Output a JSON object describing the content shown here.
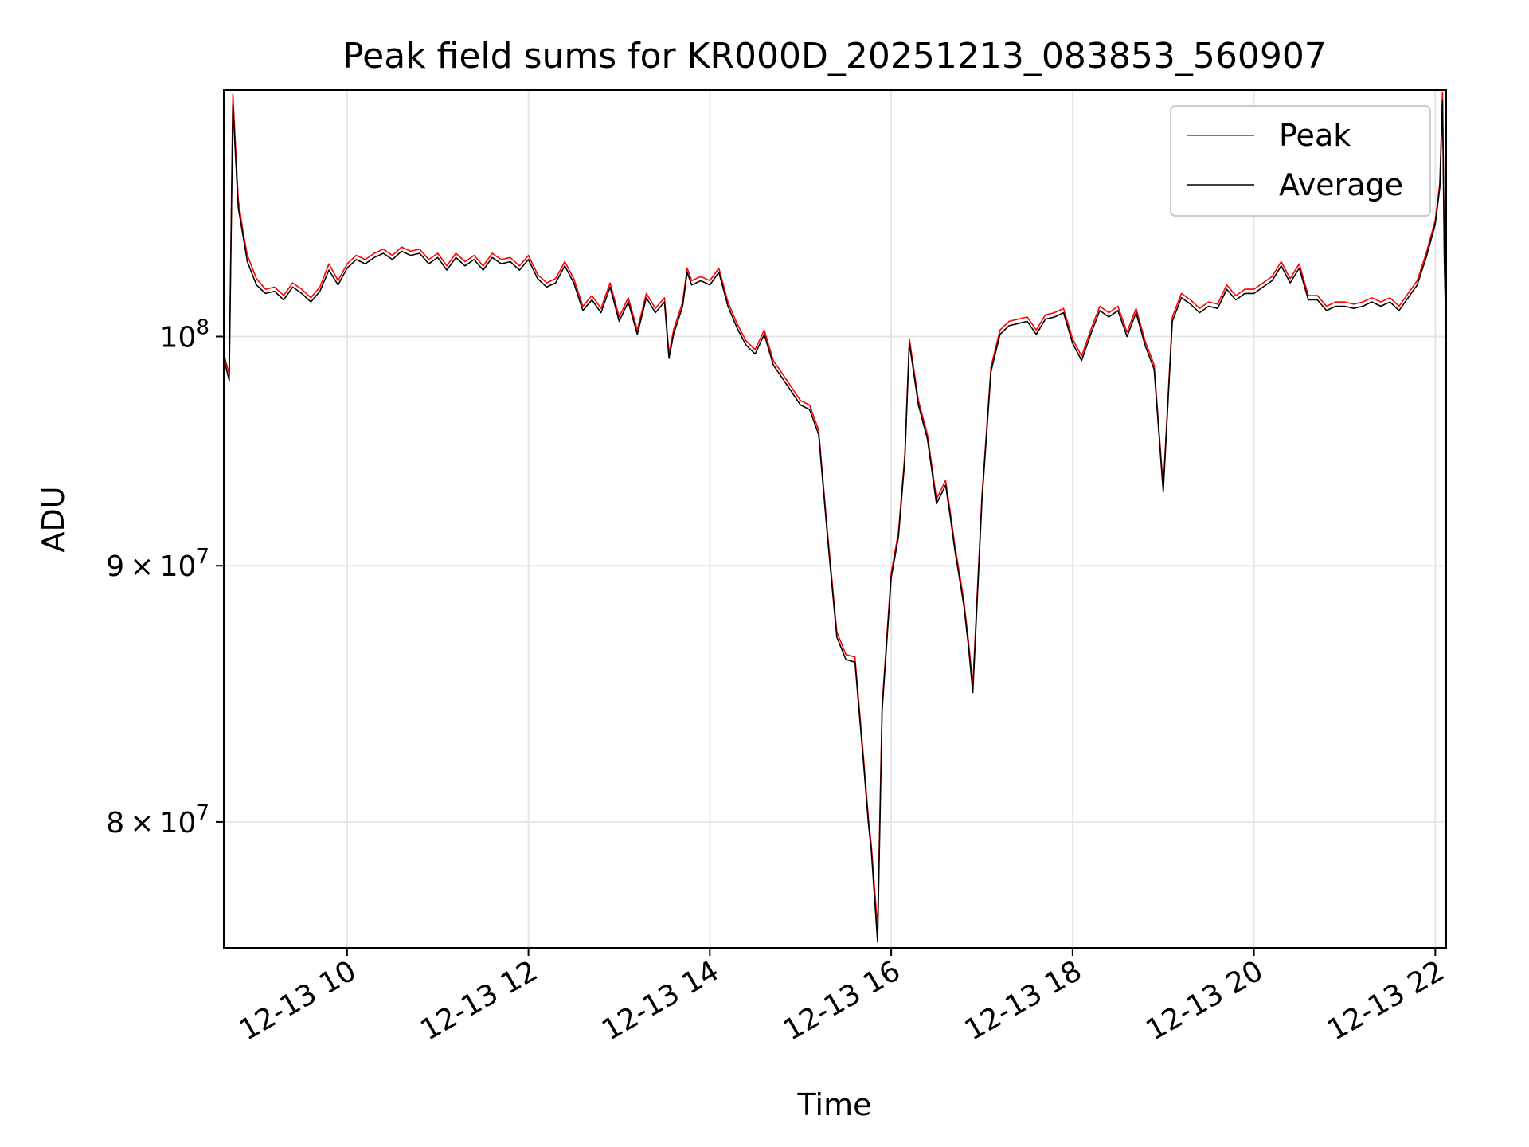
{
  "chart_data": {
    "type": "line",
    "title": "Peak field sums for KR000D_20251213_083853_560907",
    "xlabel": "Time",
    "ylabel": "ADU",
    "yscale": "log",
    "xlim": [
      8.64,
      22.12
    ],
    "ylim": [
      75500000,
      112000000
    ],
    "grid": true,
    "legend_position": "top-right",
    "x_ticks": [
      {
        "value": 10,
        "label": "12-13 10"
      },
      {
        "value": 12,
        "label": "12-13 12"
      },
      {
        "value": 14,
        "label": "12-13 14"
      },
      {
        "value": 16,
        "label": "12-13 16"
      },
      {
        "value": 18,
        "label": "12-13 18"
      },
      {
        "value": 20,
        "label": "12-13 20"
      },
      {
        "value": 22,
        "label": "12-13 22"
      }
    ],
    "y_ticks": [
      {
        "value": 80000000,
        "mantissa": "8",
        "base": "10",
        "exp": "7"
      },
      {
        "value": 90000000,
        "mantissa": "9",
        "base": "10",
        "exp": "7"
      },
      {
        "value": 100000000,
        "mantissa": "",
        "base": "10",
        "exp": "8"
      }
    ],
    "x": [
      8.64,
      8.7,
      8.74,
      8.8,
      8.85,
      8.9,
      9.0,
      9.1,
      9.2,
      9.3,
      9.4,
      9.5,
      9.6,
      9.7,
      9.8,
      9.9,
      10.0,
      10.1,
      10.2,
      10.3,
      10.4,
      10.5,
      10.6,
      10.7,
      10.8,
      10.9,
      11.0,
      11.1,
      11.2,
      11.3,
      11.4,
      11.5,
      11.6,
      11.7,
      11.8,
      11.9,
      12.0,
      12.1,
      12.2,
      12.3,
      12.4,
      12.5,
      12.6,
      12.7,
      12.8,
      12.9,
      13.0,
      13.1,
      13.2,
      13.3,
      13.4,
      13.5,
      13.55,
      13.6,
      13.7,
      13.75,
      13.8,
      13.9,
      14.0,
      14.1,
      14.2,
      14.3,
      14.4,
      14.5,
      14.6,
      14.7,
      14.8,
      14.9,
      15.0,
      15.1,
      15.2,
      15.3,
      15.4,
      15.5,
      15.6,
      15.7,
      15.75,
      15.78,
      15.85,
      15.9,
      16.0,
      16.08,
      16.15,
      16.2,
      16.3,
      16.4,
      16.5,
      16.6,
      16.65,
      16.7,
      16.8,
      16.85,
      16.9,
      17.0,
      17.1,
      17.2,
      17.3,
      17.4,
      17.5,
      17.6,
      17.7,
      17.8,
      17.9,
      18.0,
      18.1,
      18.2,
      18.3,
      18.4,
      18.5,
      18.6,
      18.7,
      18.8,
      18.9,
      19.0,
      19.1,
      19.2,
      19.3,
      19.4,
      19.5,
      19.6,
      19.7,
      19.8,
      19.9,
      20.0,
      20.1,
      20.2,
      20.3,
      20.4,
      20.5,
      20.6,
      20.7,
      20.8,
      20.9,
      21.0,
      21.1,
      21.2,
      21.3,
      21.4,
      21.5,
      21.6,
      21.7,
      21.8,
      21.9,
      22.0,
      22.05,
      22.08,
      22.1,
      22.12
    ],
    "series": [
      {
        "name": "Peak",
        "color": "#ff0000",
        "values": [
          99200000,
          98300000,
          111800000,
          106500000,
          105000000,
          103800000,
          102700000,
          102200000,
          102300000,
          101900000,
          102500000,
          102200000,
          101800000,
          102300000,
          103400000,
          102600000,
          103400000,
          103800000,
          103600000,
          103900000,
          104100000,
          103800000,
          104200000,
          104000000,
          104100000,
          103600000,
          103900000,
          103300000,
          103900000,
          103500000,
          103800000,
          103300000,
          103900000,
          103600000,
          103700000,
          103300000,
          103800000,
          102900000,
          102500000,
          102700000,
          103500000,
          102700000,
          101400000,
          101900000,
          101300000,
          102500000,
          100900000,
          101800000,
          100300000,
          102000000,
          101300000,
          101800000,
          99200000,
          100300000,
          101600000,
          103200000,
          102600000,
          102800000,
          102600000,
          103200000,
          101600000,
          100600000,
          99800000,
          99400000,
          100300000,
          98900000,
          98300000,
          97700000,
          97100000,
          96900000,
          95800000,
          91300000,
          87300000,
          86400000,
          86300000,
          82200000,
          80100000,
          79200000,
          76200000,
          84400000,
          89700000,
          91400000,
          94700000,
          99900000,
          97100000,
          95600000,
          92800000,
          93600000,
          92300000,
          90900000,
          88600000,
          87000000,
          85200000,
          92900000,
          98600000,
          100300000,
          100700000,
          100800000,
          100900000,
          100300000,
          101000000,
          101100000,
          101300000,
          99900000,
          99100000,
          100300000,
          101400000,
          101100000,
          101400000,
          100200000,
          101300000,
          99800000,
          98700000,
          93300000,
          100900000,
          102000000,
          101700000,
          101300000,
          101600000,
          101500000,
          102400000,
          101900000,
          102200000,
          102200000,
          102500000,
          102800000,
          103500000,
          102700000,
          103400000,
          101900000,
          101900000,
          101400000,
          101600000,
          101600000,
          101500000,
          101600000,
          101800000,
          101600000,
          101800000,
          101400000,
          102000000,
          102600000,
          103900000,
          105500000,
          107300000,
          111900000,
          103800000,
          100100000
        ]
      },
      {
        "name": "Average",
        "color": "#000000",
        "values": [
          99000000,
          98000000,
          111200000,
          106100000,
          104800000,
          103500000,
          102400000,
          102000000,
          102100000,
          101700000,
          102300000,
          102000000,
          101600000,
          102100000,
          103100000,
          102400000,
          103200000,
          103600000,
          103400000,
          103700000,
          103900000,
          103600000,
          104000000,
          103800000,
          103900000,
          103400000,
          103700000,
          103100000,
          103700000,
          103300000,
          103600000,
          103100000,
          103700000,
          103400000,
          103500000,
          103100000,
          103600000,
          102700000,
          102300000,
          102500000,
          103300000,
          102500000,
          101200000,
          101700000,
          101100000,
          102300000,
          100700000,
          101600000,
          100100000,
          101800000,
          101100000,
          101600000,
          99000000,
          100100000,
          101400000,
          103000000,
          102400000,
          102600000,
          102400000,
          103000000,
          101400000,
          100400000,
          99600000,
          99200000,
          100100000,
          98700000,
          98100000,
          97500000,
          96900000,
          96700000,
          95600000,
          91100000,
          87100000,
          86200000,
          86100000,
          82000000,
          79900000,
          79000000,
          75700000,
          84200000,
          89500000,
          91200000,
          94500000,
          99700000,
          96900000,
          95400000,
          92600000,
          93400000,
          92100000,
          90700000,
          88400000,
          86800000,
          84900000,
          92700000,
          98400000,
          100100000,
          100500000,
          100600000,
          100700000,
          100100000,
          100800000,
          100900000,
          101100000,
          99700000,
          98900000,
          100100000,
          101200000,
          100900000,
          101200000,
          100000000,
          101100000,
          99600000,
          98500000,
          93100000,
          100700000,
          101800000,
          101500000,
          101100000,
          101400000,
          101300000,
          102200000,
          101700000,
          102000000,
          102000000,
          102300000,
          102600000,
          103300000,
          102500000,
          103200000,
          101700000,
          101700000,
          101200000,
          101400000,
          101400000,
          101300000,
          101400000,
          101600000,
          101400000,
          101600000,
          101200000,
          101800000,
          102400000,
          103700000,
          105300000,
          107100000,
          111500000,
          103500000,
          99800000
        ]
      }
    ]
  }
}
